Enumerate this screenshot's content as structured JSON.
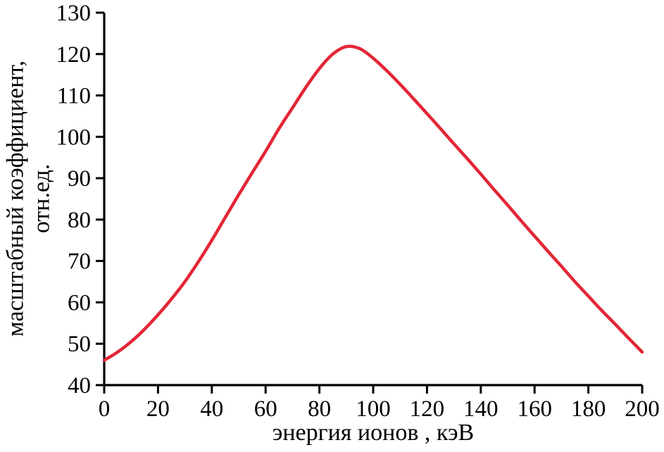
{
  "chart_data": {
    "type": "line",
    "title": "",
    "xlabel": "энергия ионов , кэВ",
    "ylabel": "масштабный коэффициент, отн.ед.",
    "ylabel_line1": "масштабный коэффициент,",
    "ylabel_line2": "отн.ед.",
    "xlim": [
      0,
      200
    ],
    "ylim": [
      40,
      130
    ],
    "xticks": [
      0,
      20,
      40,
      60,
      80,
      100,
      120,
      140,
      160,
      180,
      200
    ],
    "yticks": [
      40,
      50,
      60,
      70,
      80,
      90,
      100,
      110,
      120,
      130
    ],
    "grid": false,
    "legend": false,
    "axis_color": "#000000",
    "line_color": "#e32636",
    "line_width": 4.5,
    "series": [
      {
        "x": [
          0,
          5,
          10,
          15,
          20,
          25,
          30,
          35,
          40,
          45,
          50,
          55,
          60,
          65,
          70,
          75,
          80,
          85,
          90,
          95,
          100,
          105,
          110,
          115,
          120,
          125,
          130,
          135,
          140,
          145,
          150,
          155,
          160,
          165,
          170,
          175,
          180,
          185,
          190,
          195,
          200
        ],
        "y": [
          46,
          48,
          50.5,
          53.5,
          57,
          60.8,
          65,
          69.8,
          75,
          80.5,
          86,
          91.3,
          96.5,
          102,
          107,
          112,
          116.5,
          120,
          121.8,
          121.3,
          119,
          116,
          112.7,
          109.2,
          105.6,
          102,
          98.3,
          94.7,
          91,
          87.2,
          83.5,
          79.7,
          76,
          72.3,
          68.7,
          65,
          61.5,
          58,
          54.7,
          51.3,
          48
        ]
      }
    ]
  }
}
